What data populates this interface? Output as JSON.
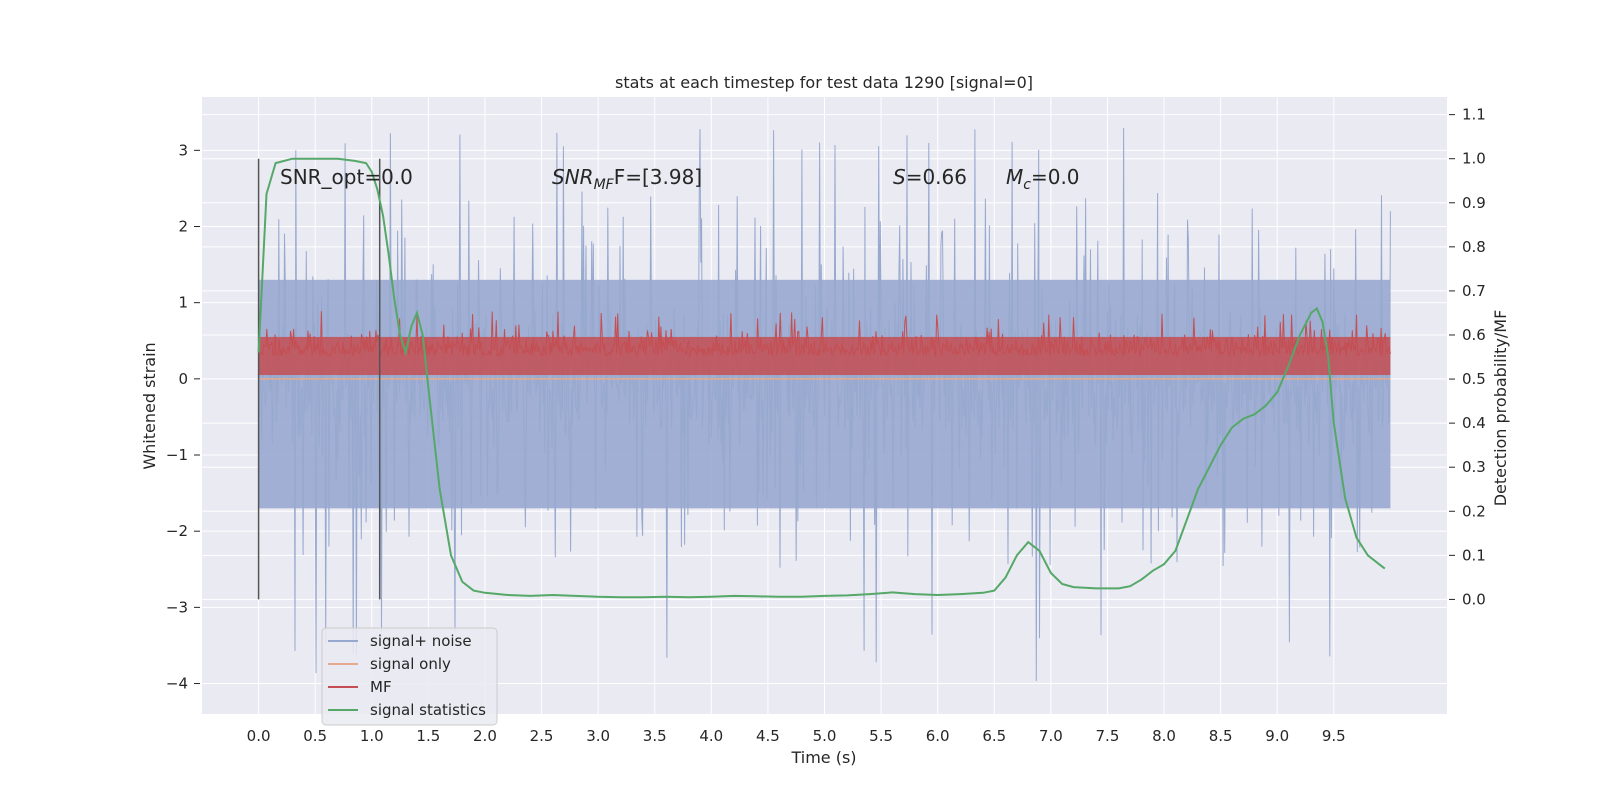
{
  "chart_data": {
    "type": "line",
    "title": "stats at each timestep for test data 1290 [signal=0]",
    "xlabel": "Time (s)",
    "ylabel": "Whitened strain",
    "ylabel_right": "Detection probability/MF",
    "xlim": [
      -0.5,
      10.5
    ],
    "ylim": [
      -4.4,
      3.7
    ],
    "ylim_right": [
      -0.26,
      1.14
    ],
    "x_ticks": [
      "0.0",
      "0.5",
      "1.0",
      "1.5",
      "2.0",
      "2.5",
      "3.0",
      "3.5",
      "4.0",
      "4.5",
      "5.0",
      "5.5",
      "6.0",
      "6.5",
      "7.0",
      "7.5",
      "8.0",
      "8.5",
      "9.0",
      "9.5"
    ],
    "y_ticks": [
      "3",
      "2",
      "1",
      "0",
      "−1",
      "−2",
      "−3",
      "−4"
    ],
    "y_ticks_right": [
      "1.1",
      "1.0",
      "0.9",
      "0.8",
      "0.7",
      "0.6",
      "0.5",
      "0.4",
      "0.3",
      "0.2",
      "0.1",
      "0.0"
    ],
    "grid": true,
    "legend_position": "lower-left",
    "colors": {
      "signal_noise": "#98a9cf",
      "signal_only": "#e6a98e",
      "mf": "#c44e52",
      "signal_statistics": "#55a868",
      "background": "#eaeaf2",
      "marker_line": "#555555"
    },
    "series": [
      {
        "name": "signal+ noise",
        "x_range": [
          0.0,
          10.0
        ],
        "y_range": [
          -4.0,
          3.3
        ],
        "typical_band": [
          -2.0,
          2.5
        ]
      },
      {
        "name": "signal only",
        "x_range": [
          0.0,
          10.0
        ],
        "values": [
          0.0
        ]
      },
      {
        "name": "MF",
        "x_range": [
          0.0,
          10.0
        ],
        "y_range": [
          0.05,
          1.0
        ],
        "typical_band": [
          0.1,
          0.7
        ]
      },
      {
        "name": "signal statistics",
        "x": [
          0.0,
          0.07,
          0.15,
          0.3,
          0.5,
          0.7,
          0.85,
          0.95,
          1.0,
          1.05,
          1.1,
          1.15,
          1.2,
          1.25,
          1.3,
          1.35,
          1.4,
          1.45,
          1.5,
          1.6,
          1.7,
          1.8,
          1.9,
          2.0,
          2.2,
          2.4,
          2.6,
          2.8,
          3.0,
          3.2,
          3.4,
          3.6,
          3.8,
          4.0,
          4.2,
          4.4,
          4.6,
          4.8,
          5.0,
          5.2,
          5.4,
          5.6,
          5.8,
          6.0,
          6.2,
          6.4,
          6.5,
          6.6,
          6.7,
          6.8,
          6.9,
          7.0,
          7.1,
          7.2,
          7.4,
          7.6,
          7.7,
          7.8,
          7.9,
          8.0,
          8.1,
          8.2,
          8.3,
          8.4,
          8.5,
          8.6,
          8.7,
          8.8,
          8.9,
          9.0,
          9.1,
          9.2,
          9.3,
          9.35,
          9.4,
          9.45,
          9.5,
          9.6,
          9.7,
          9.8,
          9.9,
          9.95
        ],
        "values": [
          0.56,
          0.92,
          0.99,
          1.0,
          1.0,
          1.0,
          0.995,
          0.99,
          0.97,
          0.93,
          0.87,
          0.78,
          0.68,
          0.6,
          0.56,
          0.62,
          0.65,
          0.6,
          0.48,
          0.25,
          0.1,
          0.04,
          0.02,
          0.015,
          0.01,
          0.008,
          0.01,
          0.008,
          0.006,
          0.005,
          0.005,
          0.006,
          0.005,
          0.006,
          0.008,
          0.007,
          0.006,
          0.006,
          0.008,
          0.009,
          0.012,
          0.016,
          0.012,
          0.01,
          0.012,
          0.015,
          0.02,
          0.05,
          0.1,
          0.13,
          0.11,
          0.06,
          0.035,
          0.028,
          0.025,
          0.025,
          0.03,
          0.045,
          0.065,
          0.08,
          0.11,
          0.18,
          0.25,
          0.3,
          0.35,
          0.39,
          0.41,
          0.42,
          0.44,
          0.47,
          0.53,
          0.6,
          0.65,
          0.66,
          0.63,
          0.55,
          0.4,
          0.23,
          0.14,
          0.1,
          0.08,
          0.07
        ]
      }
    ],
    "annotations": {
      "snr_opt": "SNR_opt=0.0",
      "snr_mf_symbol": "SNR",
      "snr_mf_sub": "MF",
      "snr_mf_rest": "F=[3.98]",
      "s_symbol": "S",
      "s_rest": "=0.66",
      "mc_symbol": "M",
      "mc_sub": "c",
      "mc_rest": "=0.0"
    },
    "vertical_markers": [
      0.0,
      1.07
    ]
  }
}
